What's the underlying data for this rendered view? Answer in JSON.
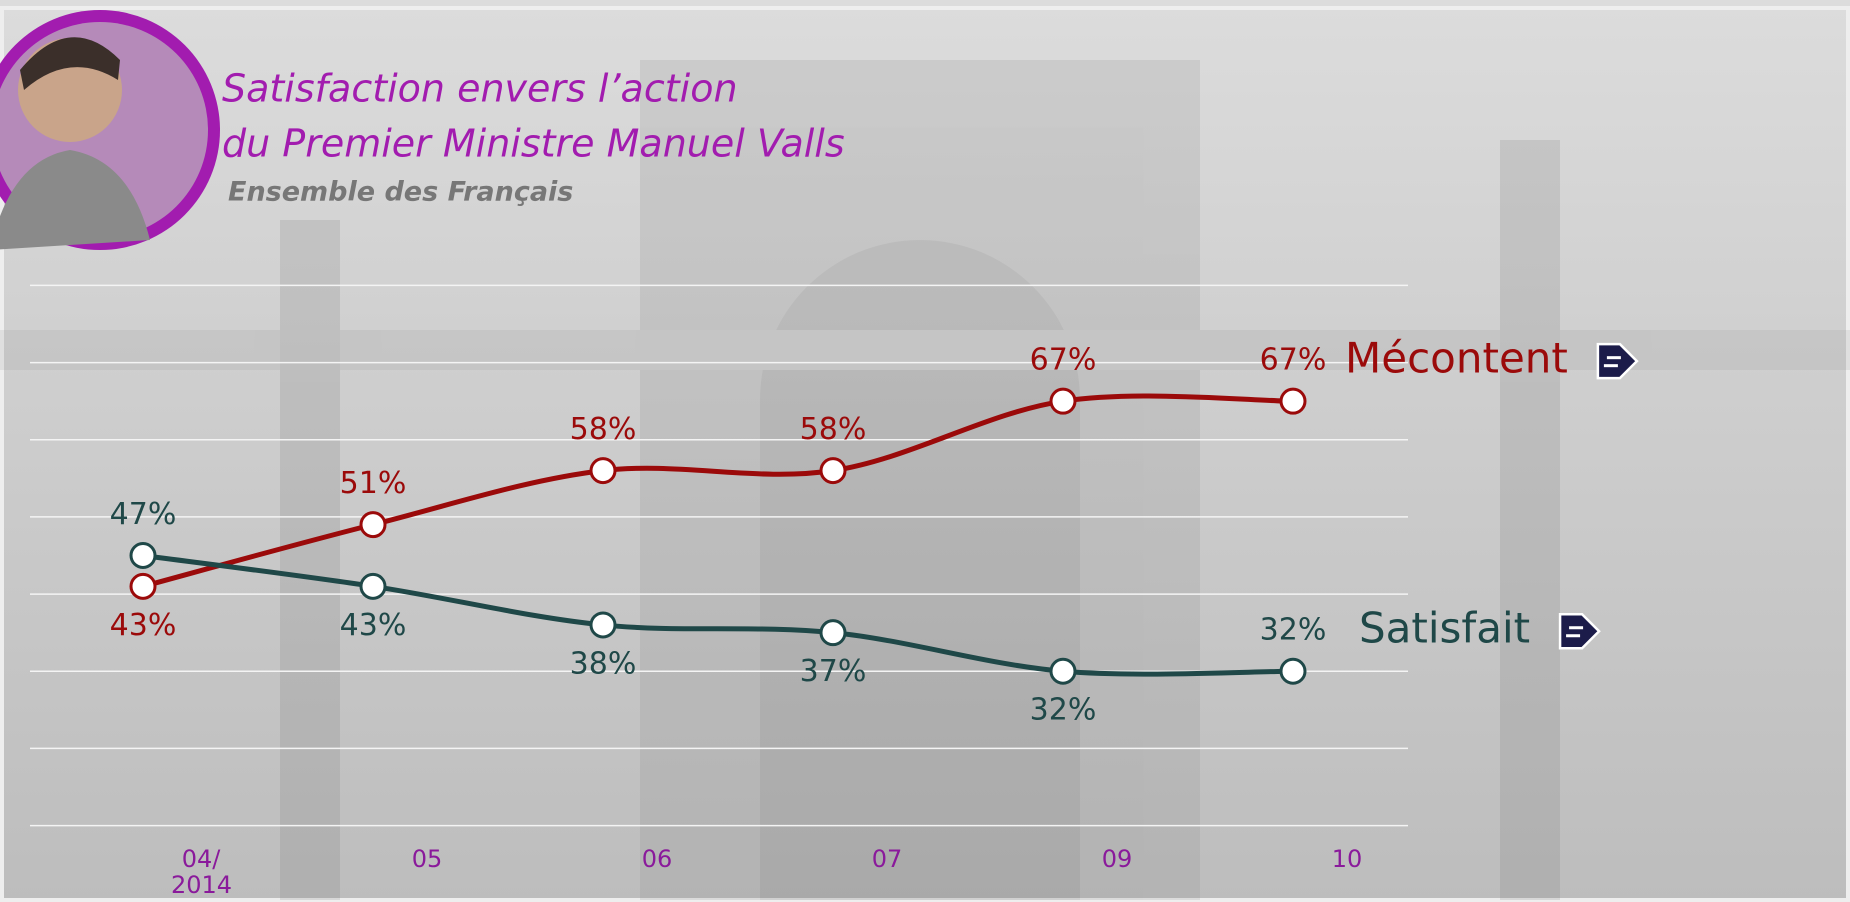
{
  "chart_data": {
    "type": "line",
    "title": [
      "Satisfaction envers l’action",
      "du Premier Ministre Manuel Valls"
    ],
    "subtitle": "Ensemble des Français",
    "categories": [
      "04/ 2014",
      "05",
      "06",
      "07",
      "09",
      "10"
    ],
    "series": [
      {
        "name": "Mécontent",
        "color": "#9b0a0a",
        "values": [
          43,
          51,
          58,
          58,
          67,
          67
        ],
        "value_labels": [
          "43%",
          "51%",
          "58%",
          "58%",
          "67%",
          "67%"
        ]
      },
      {
        "name": "Satisfait",
        "color": "#1f4848",
        "values": [
          47,
          43,
          38,
          37,
          32,
          32
        ],
        "value_labels": [
          "47%",
          "43%",
          "38%",
          "37%",
          "32%",
          "32%"
        ]
      }
    ],
    "ylim": [
      10,
      84
    ],
    "yticks": [
      12,
      22,
      32,
      42,
      52,
      62,
      72,
      82
    ],
    "grid": true
  }
}
